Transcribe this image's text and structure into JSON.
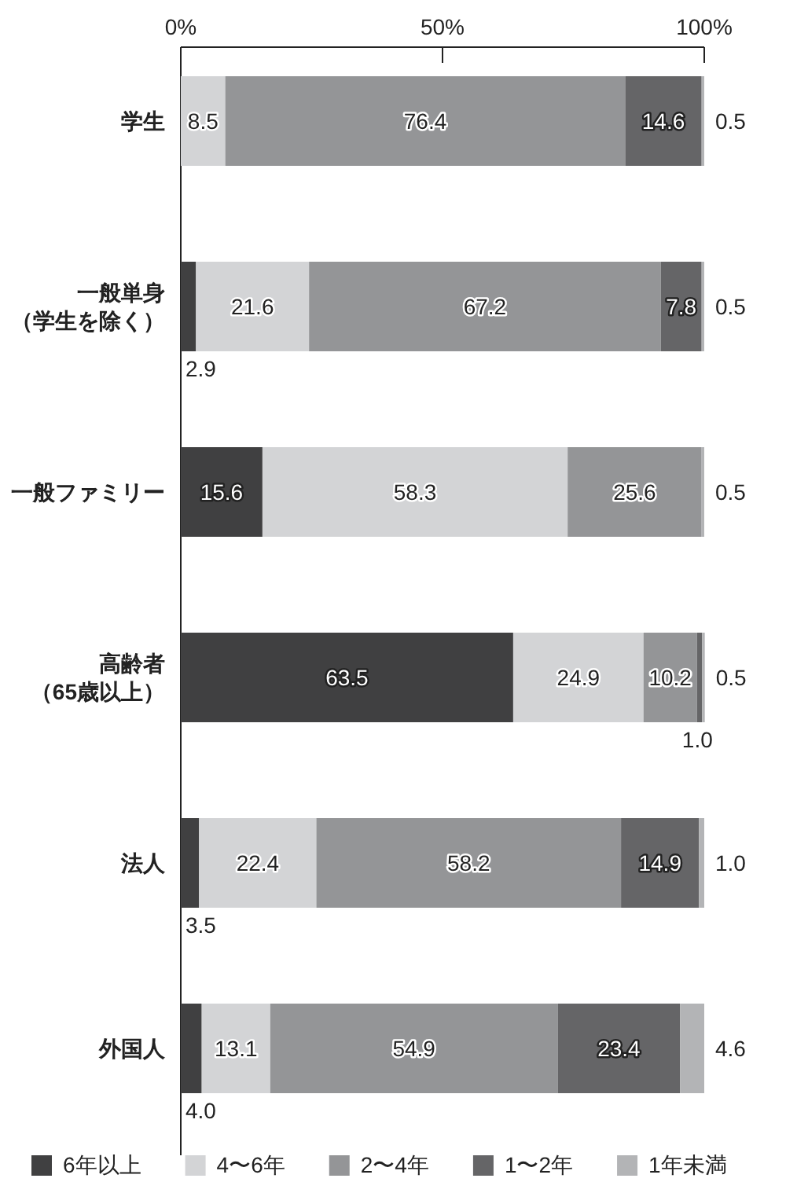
{
  "chart_data": {
    "type": "bar",
    "orientation": "horizontal",
    "stacked": true,
    "categories": [
      "学生",
      "一般単身（学生を除く）",
      "一般ファミリー",
      "高齢者（65歳以上）",
      "法人",
      "外国人"
    ],
    "xlim": [
      0,
      100
    ],
    "xticks": [
      {
        "value": 0,
        "label": "0%"
      },
      {
        "value": 50,
        "label": "50%"
      },
      {
        "value": 100,
        "label": "100%"
      }
    ],
    "legend": "bottom",
    "grid": false,
    "series": [
      {
        "name": "6年以上",
        "color": "#404041",
        "values": [
          0,
          2.9,
          15.6,
          63.5,
          3.5,
          4.0
        ],
        "value_labels": [
          null,
          "2.9",
          "15.6",
          "63.5",
          "3.5",
          "4.0"
        ]
      },
      {
        "name": "4〜6年",
        "color": "#d3d4d6",
        "values": [
          8.5,
          21.6,
          58.3,
          24.9,
          22.4,
          13.1
        ],
        "value_labels": [
          "8.5",
          "21.6",
          "58.3",
          "24.9",
          "22.4",
          "13.1"
        ]
      },
      {
        "name": "2〜4年",
        "color": "#949597",
        "values": [
          76.4,
          67.2,
          25.6,
          10.2,
          58.2,
          54.9
        ],
        "value_labels": [
          "76.4",
          "67.2",
          "25.6",
          "10.2",
          "58.2",
          "54.9"
        ]
      },
      {
        "name": "1〜2年",
        "color": "#656567",
        "values": [
          14.6,
          7.8,
          0,
          1.0,
          14.9,
          23.4
        ],
        "value_labels": [
          "14.6",
          "7.8",
          null,
          "1.0",
          "14.9",
          "23.4"
        ]
      },
      {
        "name": "1年未満",
        "color": "#b3b4b6",
        "values": [
          0.5,
          0.5,
          0.5,
          0.5,
          1.0,
          4.6
        ],
        "value_labels": [
          "0.5",
          "0.5",
          "0.5",
          "0.5",
          "1.0",
          "4.6"
        ]
      }
    ]
  }
}
